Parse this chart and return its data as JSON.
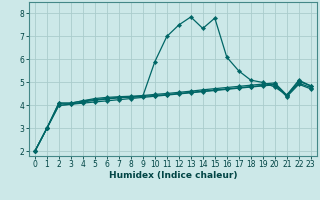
{
  "xlabel": "Humidex (Indice chaleur)",
  "bg_color": "#cce8e8",
  "grid_color": "#aacccc",
  "line_color": "#006666",
  "xlim": [
    -0.5,
    23.5
  ],
  "ylim": [
    1.8,
    8.5
  ],
  "xticks": [
    0,
    1,
    2,
    3,
    4,
    5,
    6,
    7,
    8,
    9,
    10,
    11,
    12,
    13,
    14,
    15,
    16,
    17,
    18,
    19,
    20,
    21,
    22,
    23
  ],
  "yticks": [
    2,
    3,
    4,
    5,
    6,
    7,
    8
  ],
  "lines": [
    [
      2.0,
      3.0,
      4.1,
      4.1,
      4.2,
      4.25,
      4.3,
      4.35,
      4.35,
      4.4,
      5.9,
      7.0,
      7.5,
      7.85,
      7.35,
      7.8,
      6.1,
      5.5,
      5.1,
      5.0,
      4.8,
      4.45,
      5.1,
      4.85
    ],
    [
      2.0,
      3.0,
      4.1,
      4.1,
      4.2,
      4.3,
      4.35,
      4.38,
      4.4,
      4.43,
      4.48,
      4.52,
      4.57,
      4.62,
      4.68,
      4.73,
      4.78,
      4.83,
      4.88,
      4.93,
      4.98,
      4.45,
      5.05,
      4.85
    ],
    [
      2.0,
      3.0,
      4.0,
      4.05,
      4.15,
      4.22,
      4.28,
      4.33,
      4.37,
      4.4,
      4.43,
      4.47,
      4.52,
      4.57,
      4.62,
      4.67,
      4.72,
      4.77,
      4.82,
      4.87,
      4.92,
      4.42,
      4.97,
      4.78
    ],
    [
      2.0,
      3.0,
      4.0,
      4.05,
      4.1,
      4.15,
      4.2,
      4.25,
      4.3,
      4.35,
      4.4,
      4.45,
      4.5,
      4.55,
      4.6,
      4.65,
      4.7,
      4.75,
      4.8,
      4.85,
      4.9,
      4.38,
      4.92,
      4.72
    ]
  ],
  "marker": "D",
  "markersize": 2.2,
  "linewidth": 0.9,
  "tick_fontsize": 5.5,
  "xlabel_fontsize": 6.5,
  "xlabel_color": "#004444",
  "tick_color": "#004444"
}
